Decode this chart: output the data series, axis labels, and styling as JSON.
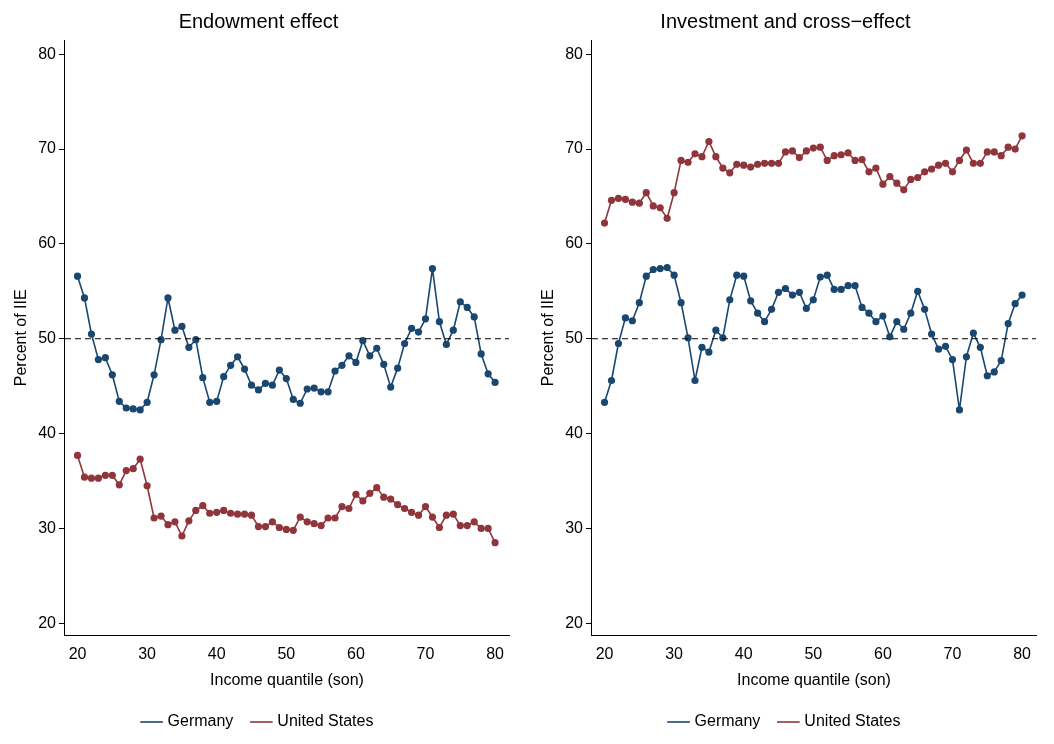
{
  "chart_data": [
    {
      "type": "line",
      "title": "Endowment effect",
      "xlabel": "Income quantile (son)",
      "ylabel": "Percent of IIE",
      "x": [
        20,
        21,
        22,
        23,
        24,
        25,
        26,
        27,
        28,
        29,
        30,
        31,
        32,
        33,
        34,
        35,
        36,
        37,
        38,
        39,
        40,
        41,
        42,
        43,
        44,
        45,
        46,
        47,
        48,
        49,
        50,
        51,
        52,
        53,
        54,
        55,
        56,
        57,
        58,
        59,
        60,
        61,
        62,
        63,
        64,
        65,
        66,
        67,
        68,
        69,
        70,
        71,
        72,
        73,
        74,
        75,
        76,
        77,
        78,
        79,
        80
      ],
      "series": [
        {
          "name": "Germany",
          "color": "#1a476f",
          "values": [
            56.6,
            54.3,
            50.5,
            47.8,
            48.0,
            46.2,
            43.4,
            42.7,
            42.6,
            42.5,
            43.3,
            46.2,
            49.9,
            54.3,
            50.9,
            51.3,
            49.1,
            49.9,
            45.9,
            43.3,
            43.4,
            46.0,
            47.2,
            48.1,
            46.8,
            45.1,
            44.6,
            45.3,
            45.1,
            46.7,
            45.8,
            43.6,
            43.2,
            44.7,
            44.8,
            44.4,
            44.4,
            46.6,
            47.2,
            48.2,
            47.5,
            49.8,
            48.2,
            49.0,
            47.3,
            44.9,
            46.9,
            49.5,
            51.1,
            50.7,
            52.1,
            57.4,
            51.8,
            49.4,
            50.9,
            53.9,
            53.3,
            52.3,
            48.4,
            46.3,
            45.4
          ]
        },
        {
          "name": "United States",
          "color": "#90353b",
          "values": [
            37.7,
            35.4,
            35.3,
            35.3,
            35.6,
            35.6,
            34.6,
            36.1,
            36.3,
            37.3,
            34.5,
            31.1,
            31.3,
            30.4,
            30.7,
            29.2,
            30.8,
            31.9,
            32.4,
            31.6,
            31.7,
            31.9,
            31.6,
            31.5,
            31.5,
            31.4,
            30.2,
            30.2,
            30.7,
            30.1,
            29.9,
            29.8,
            31.2,
            30.7,
            30.5,
            30.3,
            31.1,
            31.1,
            32.3,
            32.1,
            33.6,
            32.9,
            33.7,
            34.3,
            33.3,
            33.1,
            32.5,
            32.1,
            31.7,
            31.4,
            32.3,
            31.2,
            30.1,
            31.4,
            31.5,
            30.3,
            30.3,
            30.7,
            30.0,
            30.0,
            28.5
          ]
        }
      ],
      "xlim": [
        18.2,
        82
      ],
      "xticks": [
        20,
        30,
        40,
        50,
        60,
        70,
        80
      ],
      "ylim": [
        18.7,
        81.5
      ],
      "yticks": [
        20,
        30,
        40,
        50,
        60,
        70,
        80
      ],
      "ref_lines": [
        {
          "axis": "y",
          "value": 50,
          "line_style": "dashed",
          "color": "#000000"
        }
      ],
      "grid": false,
      "legend": "bottom",
      "marker": "circle",
      "line_style": "solid"
    },
    {
      "type": "line",
      "title": "Investment and cross−effect",
      "xlabel": "Income quantile (son)",
      "ylabel": "Percent of IIE",
      "x": [
        20,
        21,
        22,
        23,
        24,
        25,
        26,
        27,
        28,
        29,
        30,
        31,
        32,
        33,
        34,
        35,
        36,
        37,
        38,
        39,
        40,
        41,
        42,
        43,
        44,
        45,
        46,
        47,
        48,
        49,
        50,
        51,
        52,
        53,
        54,
        55,
        56,
        57,
        58,
        59,
        60,
        61,
        62,
        63,
        64,
        65,
        66,
        67,
        68,
        69,
        70,
        71,
        72,
        73,
        74,
        75,
        76,
        77,
        78,
        79,
        80
      ],
      "series": [
        {
          "name": "Germany",
          "color": "#1a476f",
          "values": [
            43.3,
            45.6,
            49.5,
            52.2,
            51.9,
            53.8,
            56.6,
            57.3,
            57.4,
            57.5,
            56.7,
            53.8,
            50.1,
            45.6,
            49.1,
            48.6,
            50.9,
            50.1,
            54.1,
            56.7,
            56.6,
            54.0,
            52.7,
            51.8,
            53.1,
            54.9,
            55.3,
            54.6,
            54.9,
            53.2,
            54.1,
            56.5,
            56.7,
            55.2,
            55.2,
            55.6,
            55.6,
            53.3,
            52.7,
            51.8,
            52.4,
            50.2,
            51.8,
            51.0,
            52.7,
            55.0,
            53.1,
            50.5,
            48.9,
            49.2,
            47.8,
            42.5,
            48.1,
            50.6,
            49.1,
            46.1,
            46.5,
            47.7,
            51.6,
            53.7,
            54.6
          ]
        },
        {
          "name": "United States",
          "color": "#90353b",
          "values": [
            62.2,
            64.6,
            64.8,
            64.7,
            64.4,
            64.3,
            65.4,
            64.0,
            63.8,
            62.7,
            65.4,
            68.8,
            68.6,
            69.5,
            69.2,
            70.8,
            69.2,
            68.0,
            67.5,
            68.4,
            68.3,
            68.1,
            68.4,
            68.5,
            68.5,
            68.5,
            69.7,
            69.8,
            69.1,
            69.8,
            70.1,
            70.2,
            68.8,
            69.3,
            69.4,
            69.6,
            68.8,
            68.9,
            67.6,
            68.0,
            66.3,
            67.1,
            66.4,
            65.7,
            66.8,
            67.0,
            67.6,
            67.9,
            68.3,
            68.5,
            67.6,
            68.8,
            69.9,
            68.5,
            68.5,
            69.7,
            69.7,
            69.3,
            70.2,
            70.0,
            71.4
          ]
        }
      ],
      "xlim": [
        18.2,
        82
      ],
      "xticks": [
        20,
        30,
        40,
        50,
        60,
        70,
        80
      ],
      "ylim": [
        18.7,
        81.5
      ],
      "yticks": [
        20,
        30,
        40,
        50,
        60,
        70,
        80
      ],
      "ref_lines": [
        {
          "axis": "y",
          "value": 50,
          "line_style": "dashed",
          "color": "#000000"
        }
      ],
      "grid": false,
      "legend": "bottom",
      "marker": "circle",
      "line_style": "solid"
    }
  ]
}
